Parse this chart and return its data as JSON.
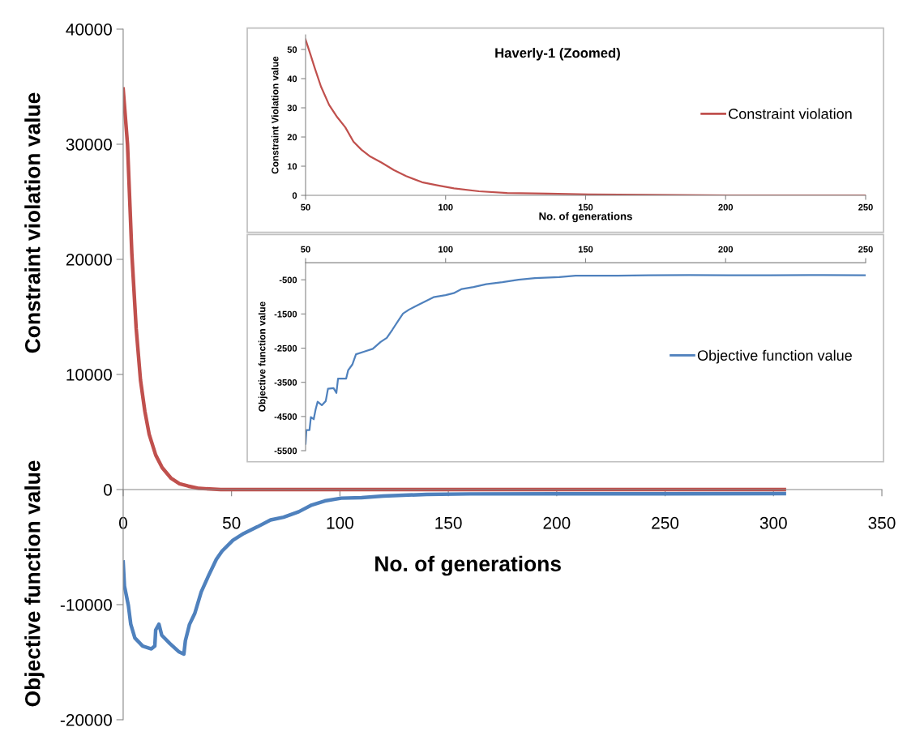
{
  "chart_data": [
    {
      "type": "line",
      "xlabel": "No. of generations",
      "ylabel": "Constraint violation value",
      "annotations": [
        "Objective function value"
      ],
      "xlim": [
        0,
        350
      ],
      "xticks": [
        0,
        50,
        100,
        150,
        200,
        250,
        300,
        350
      ],
      "ylim": [
        -20000,
        40000
      ],
      "yticks": [
        -20000,
        -10000,
        0,
        10000,
        20000,
        30000,
        40000
      ],
      "legend": false,
      "series": [
        {
          "color": "#c0504d",
          "x": [
            0,
            2,
            4,
            6,
            8,
            10,
            12,
            15,
            18,
            22,
            26,
            30,
            35,
            45,
            305
          ],
          "values": [
            34800,
            30000,
            20500,
            14000,
            9500,
            6800,
            4800,
            3000,
            1900,
            1000,
            500,
            300,
            100,
            0,
            0
          ]
        },
        {
          "color": "#4f81bd",
          "x": [
            0,
            0.6,
            2.4,
            3.5,
            5.4,
            9,
            13,
            14.6,
            15,
            16.5,
            17.8,
            21.5,
            25.6,
            28,
            28.7,
            30.6,
            33,
            36,
            39.4,
            43,
            45.6,
            50.6,
            55.6,
            62,
            68,
            74,
            81,
            87,
            93,
            100.6,
            110,
            120,
            140,
            160,
            200,
            250,
            305
          ],
          "values": [
            -6300,
            -8400,
            -10070,
            -11700,
            -12900,
            -13600,
            -13840,
            -13600,
            -12200,
            -11700,
            -12660,
            -13370,
            -14080,
            -14300,
            -13140,
            -11720,
            -10780,
            -8900,
            -7480,
            -6060,
            -5350,
            -4410,
            -3820,
            -3230,
            -2640,
            -2400,
            -1930,
            -1340,
            -990,
            -750,
            -700,
            -570,
            -420,
            -380,
            -370,
            -370,
            -360
          ]
        }
      ]
    },
    {
      "type": "line",
      "title": "Haverly-1 (Zoomed)",
      "xlabel": "No. of generations",
      "ylabel": "Constraint Violation value",
      "xlim": [
        50,
        250
      ],
      "xticks": [
        50,
        100,
        150,
        200,
        250
      ],
      "ylim": [
        0,
        55
      ],
      "yticks": [
        0,
        10,
        20,
        30,
        40,
        50
      ],
      "grid": false,
      "legend": "right",
      "series": [
        {
          "name": "Constraint violation",
          "color": "#c0504d",
          "x": [
            50,
            51.9,
            53.3,
            55.5,
            58.4,
            61.3,
            64.2,
            67.1,
            70,
            72.8,
            77.2,
            81.5,
            85.9,
            91.6,
            97.4,
            103,
            111.9,
            122,
            136.5,
            151,
            172.6,
            201,
            250
          ],
          "values": [
            53.4,
            47.8,
            43.6,
            37.3,
            31,
            26.8,
            23.3,
            18.4,
            15.6,
            13.5,
            11.2,
            8.7,
            6.6,
            4.5,
            3.4,
            2.4,
            1.4,
            0.8,
            0.6,
            0.3,
            0.2,
            0,
            0
          ]
        }
      ]
    },
    {
      "type": "line",
      "ylabel": "Objective function value",
      "xlim": [
        50,
        250
      ],
      "xticks": [
        50,
        100,
        150,
        200,
        250
      ],
      "ylim": [
        -5500,
        0
      ],
      "yticks": [
        -5500,
        -4500,
        -3500,
        -2500,
        -1500,
        -500
      ],
      "grid": false,
      "legend": "right",
      "series": [
        {
          "name": "Objective function value",
          "color": "#4f81bd",
          "x": [
            50,
            50.3,
            51.4,
            51.9,
            52.9,
            53.6,
            54.3,
            55.8,
            57.2,
            58,
            60,
            61,
            61.6,
            64.5,
            65.2,
            66.7,
            68,
            71,
            74,
            76.8,
            79,
            81,
            83.3,
            84.8,
            87,
            89.9,
            92.8,
            95.7,
            100,
            102.9,
            105.8,
            110,
            114.5,
            120.3,
            126,
            131.9,
            140.6,
            146.4,
            158,
            172.5,
            187,
            201,
            216,
            230,
            250
          ],
          "values": [
            -5300,
            -4900,
            -4900,
            -4520,
            -4580,
            -4290,
            -4070,
            -4170,
            -4050,
            -3690,
            -3670,
            -3810,
            -3390,
            -3390,
            -3150,
            -2980,
            -2680,
            -2600,
            -2520,
            -2320,
            -2200,
            -1960,
            -1670,
            -1490,
            -1370,
            -1250,
            -1130,
            -1010,
            -950,
            -890,
            -770,
            -710,
            -630,
            -570,
            -500,
            -450,
            -420,
            -380,
            -380,
            -370,
            -360,
            -370,
            -370,
            -360,
            -370
          ]
        }
      ]
    }
  ]
}
